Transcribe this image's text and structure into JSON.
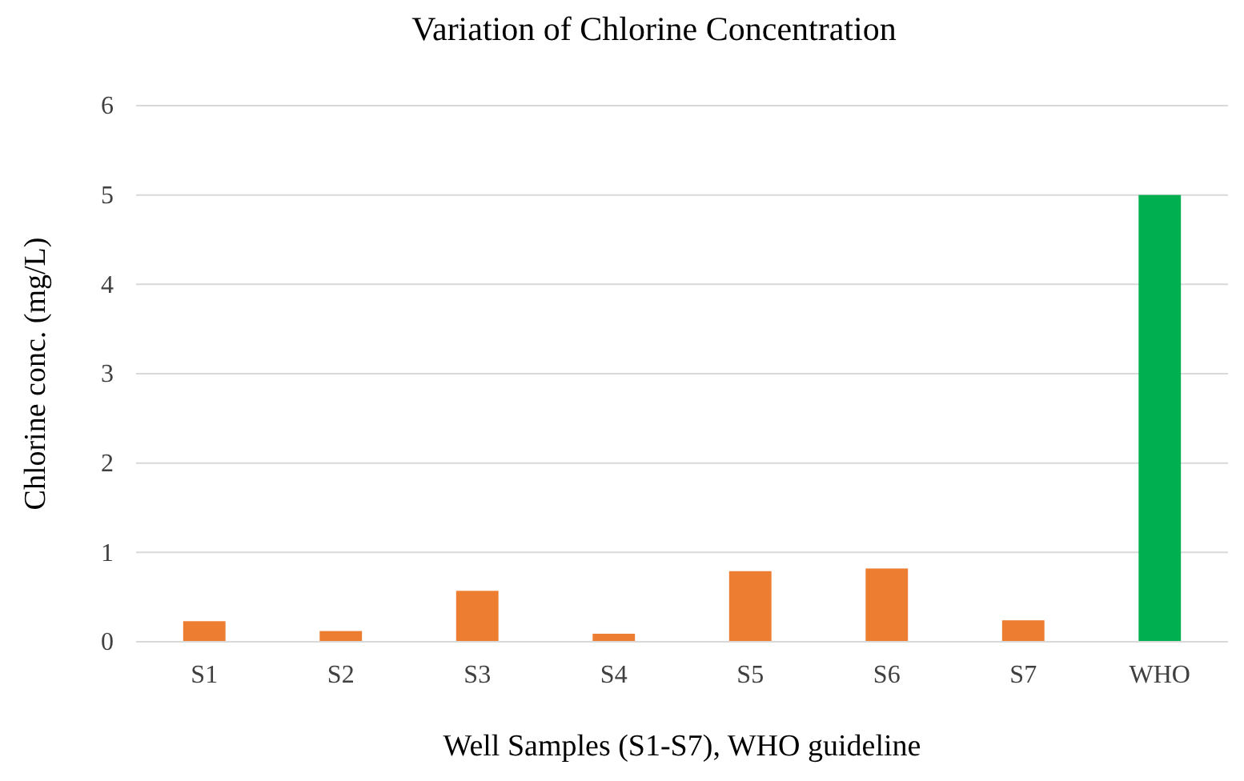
{
  "chart_data": {
    "type": "bar",
    "title": "Variation of Chlorine Concentration",
    "xlabel": "Well Samples (S1-S7), WHO guideline",
    "ylabel": "Chlorine conc. (mg/L)",
    "categories": [
      "S1",
      "S2",
      "S3",
      "S4",
      "S5",
      "S6",
      "S7",
      "WHO"
    ],
    "values": [
      0.23,
      0.12,
      0.57,
      0.09,
      0.79,
      0.82,
      0.24,
      5
    ],
    "colors": [
      "#ed7d31",
      "#ed7d31",
      "#ed7d31",
      "#ed7d31",
      "#ed7d31",
      "#ed7d31",
      "#ed7d31",
      "#00b050"
    ],
    "ylim": [
      0,
      6
    ],
    "yticks": [
      0,
      1,
      2,
      3,
      4,
      5,
      6
    ],
    "grid": "y"
  }
}
